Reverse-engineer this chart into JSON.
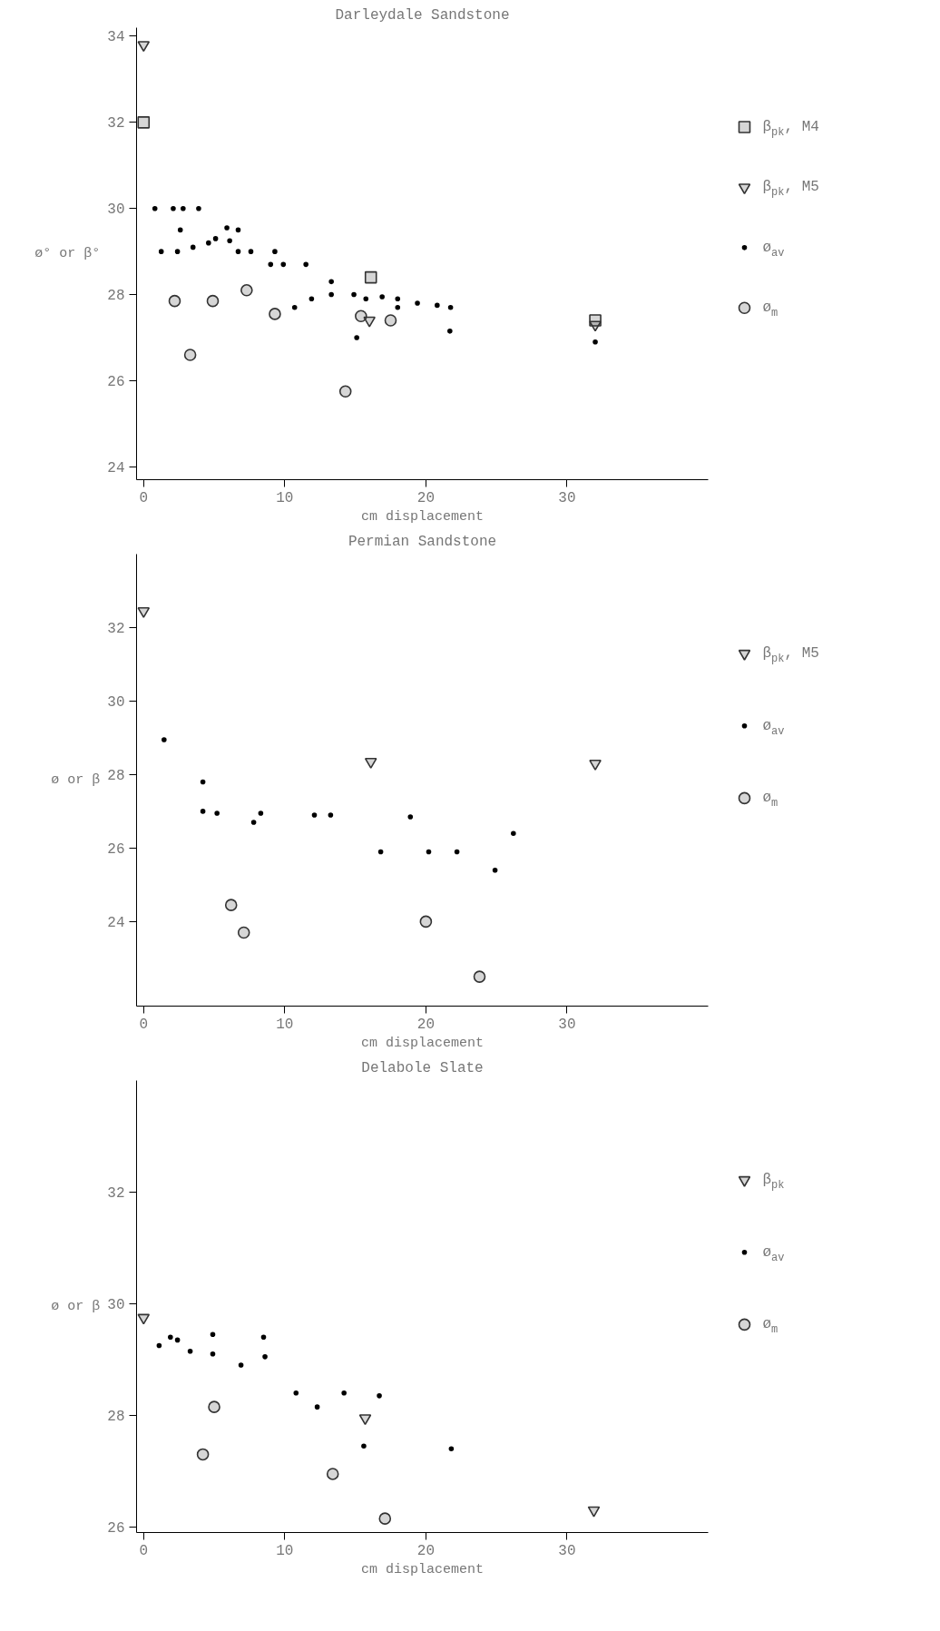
{
  "chart_data": [
    {
      "type": "scatter",
      "title": "Darleydale Sandstone",
      "xlabel": "cm displacement",
      "ylabel": "ø° or β°",
      "xlim": [
        -0.5,
        40
      ],
      "ylim": [
        23.7,
        34.2
      ],
      "xticks": [
        0,
        10,
        20,
        30
      ],
      "yticks": [
        24,
        26,
        28,
        30,
        32,
        34
      ],
      "grid": false,
      "legend": "right",
      "series": [
        {
          "name": "β$_{pk}$, M4",
          "color": "#333333",
          "marker": "square",
          "x": [
            0,
            16.1,
            32.0
          ],
          "values": [
            32.0,
            28.4,
            27.4
          ]
        },
        {
          "name": "β$_{pk}$, M5",
          "color": "#333333",
          "marker": "triangle",
          "x": [
            0,
            16.0,
            32.0
          ],
          "values": [
            33.8,
            27.4,
            27.3
          ]
        },
        {
          "name": "ø$_{av}$",
          "color": "#000000",
          "marker": "circle",
          "x": [
            0.8,
            1.25,
            2.1,
            2.8,
            2.4,
            2.6,
            3.5,
            3.9,
            4.6,
            5.1,
            5.9,
            6.7,
            6.1,
            6.7,
            7.6,
            9.0,
            9.3,
            9.9,
            11.5,
            10.7,
            11.9,
            13.3,
            13.3,
            14.9,
            15.1,
            15.75,
            16.9,
            18.0,
            18.0,
            19.4,
            20.8,
            21.75,
            21.7,
            32.0
          ],
          "values": [
            30.0,
            29.0,
            30.0,
            30.0,
            29.0,
            29.5,
            29.1,
            30.0,
            29.2,
            29.3,
            29.55,
            29.5,
            29.25,
            29.0,
            29.0,
            28.7,
            29.0,
            28.7,
            28.7,
            27.7,
            27.9,
            28.3,
            28.0,
            28.0,
            27.0,
            27.9,
            27.95,
            27.9,
            27.7,
            27.8,
            27.75,
            27.7,
            27.15,
            26.9
          ]
        },
        {
          "name": "ø$_{m}$",
          "color": "#333333",
          "marker": "circle",
          "x": [
            2.2,
            3.3,
            4.9,
            7.3,
            9.3,
            14.3,
            15.4,
            17.5
          ],
          "values": [
            27.85,
            26.6,
            27.85,
            28.1,
            27.55,
            25.75,
            27.5,
            27.4
          ]
        }
      ]
    },
    {
      "type": "scatter",
      "title": "Permian Sandstone",
      "xlabel": "cm displacement",
      "ylabel": "ø or β",
      "xlim": [
        -0.5,
        40
      ],
      "ylim": [
        21.7,
        34
      ],
      "xticks": [
        0,
        10,
        20,
        30
      ],
      "yticks": [
        24,
        26,
        28,
        30,
        32
      ],
      "grid": false,
      "legend": "right",
      "series": [
        {
          "name": "β$_{pk}$, M5",
          "color": "#333333",
          "marker": "triangle",
          "x": [
            0,
            16.1,
            32.0
          ],
          "values": [
            32.45,
            28.35,
            28.3
          ]
        },
        {
          "name": "ø$_{av}$",
          "color": "#000000",
          "marker": "circle",
          "x": [
            1.45,
            4.2,
            4.2,
            5.2,
            7.8,
            8.3,
            12.1,
            13.25,
            18.9,
            16.8,
            20.2,
            22.2,
            24.9,
            26.2
          ],
          "values": [
            28.95,
            27.8,
            27.0,
            26.95,
            26.7,
            26.95,
            26.9,
            26.9,
            26.85,
            25.9,
            25.9,
            25.9,
            25.4,
            26.4
          ]
        },
        {
          "name": "ø$_{m}$",
          "color": "#333333",
          "marker": "circle",
          "x": [
            6.2,
            7.1,
            20.0,
            23.8
          ],
          "values": [
            24.45,
            23.7,
            24.0,
            22.5
          ]
        }
      ]
    },
    {
      "type": "scatter",
      "title": "Delabole Slate",
      "xlabel": "cm displacement",
      "ylabel": "ø or β",
      "xlim": [
        -0.5,
        40
      ],
      "ylim": [
        25.9,
        34
      ],
      "xticks": [
        0,
        10,
        20,
        30
      ],
      "yticks": [
        26,
        28,
        30,
        32
      ],
      "grid": false,
      "legend": "right",
      "series": [
        {
          "name": "β$_{pk}$",
          "color": "#333333",
          "marker": "triangle",
          "x": [
            0,
            15.7,
            31.9
          ],
          "values": [
            29.75,
            27.95,
            26.3
          ]
        },
        {
          "name": "ø$_{av}$",
          "color": "#000000",
          "marker": "circle",
          "x": [
            1.1,
            1.9,
            2.4,
            3.3,
            4.9,
            4.9,
            6.9,
            8.5,
            8.6,
            10.8,
            12.3,
            14.2,
            16.7,
            15.6,
            21.8
          ],
          "values": [
            29.25,
            29.4,
            29.35,
            29.15,
            29.45,
            29.1,
            28.9,
            29.4,
            29.05,
            28.4,
            28.15,
            28.4,
            28.35,
            27.45,
            27.4
          ]
        },
        {
          "name": "ø$_{m}$",
          "color": "#333333",
          "marker": "circle",
          "x": [
            4.2,
            5.0,
            13.4,
            17.1
          ],
          "values": [
            27.3,
            28.15,
            26.95,
            26.15
          ]
        }
      ]
    }
  ]
}
